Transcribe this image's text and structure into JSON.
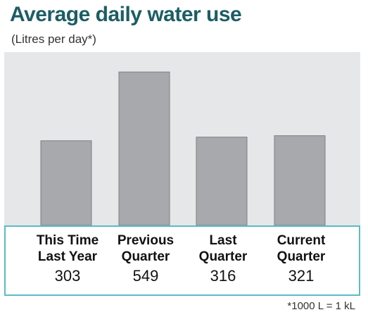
{
  "chart_data": {
    "type": "bar",
    "title": "Average daily water use",
    "subtitle": "(Litres per day*)",
    "categories": [
      "This Time\nLast Year",
      "Previous\nQuarter",
      "Last\nQuarter",
      "Current\nQuarter"
    ],
    "values": [
      303,
      549,
      316,
      321
    ],
    "value_labels": [
      "303",
      "549",
      "316",
      "321"
    ],
    "ylim": [
      0,
      620
    ],
    "footnote": "*1000 L = 1 kL",
    "colors": {
      "bar": "#a7a9ac",
      "bar_border": "#7d7f82",
      "plot_bg": "#e6e7e8",
      "title": "#1d5d64",
      "label_border": "#5bbcc6"
    }
  }
}
